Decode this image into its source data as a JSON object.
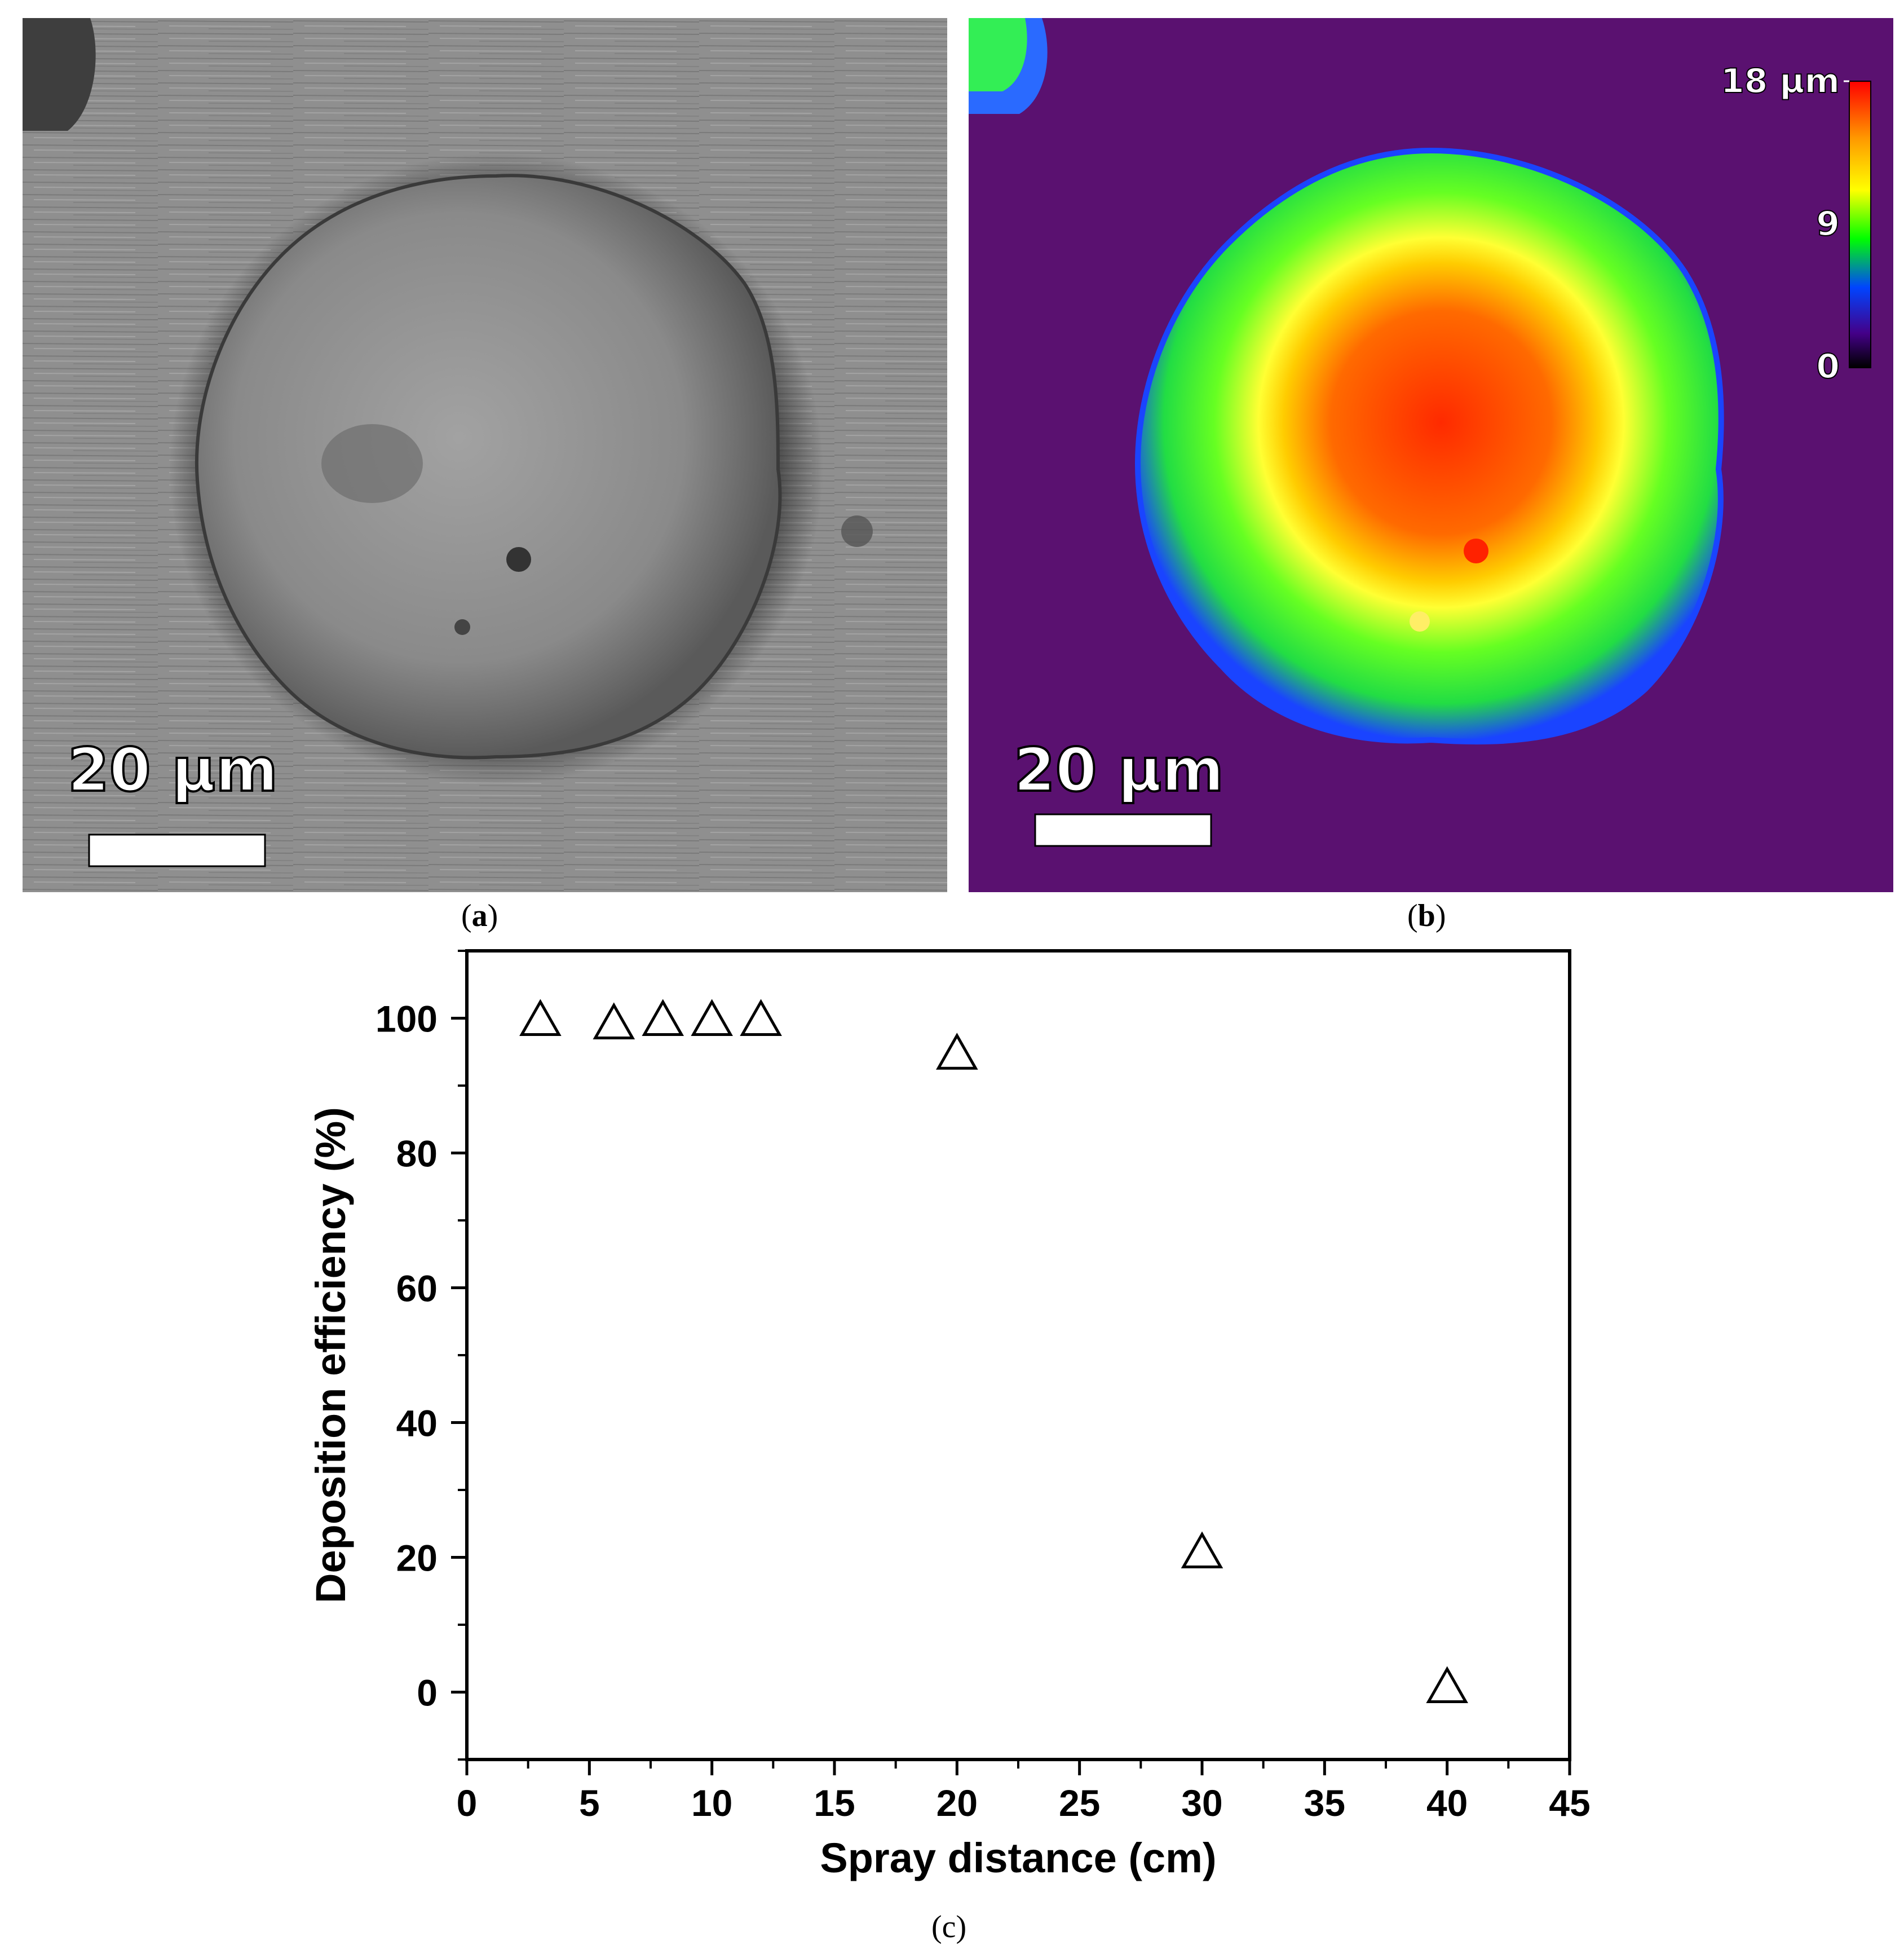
{
  "panel_a": {
    "scalebar_label": "20 µm",
    "caption": "a"
  },
  "panel_b": {
    "scalebar_label": "20 µm",
    "caption": "b",
    "colorbar": {
      "labels": [
        "18 µm",
        "9",
        "0"
      ],
      "colors": [
        "#ff0000",
        "#ff9900",
        "#ffff00",
        "#00ff00",
        "#0044ff",
        "#440088",
        "#000000"
      ]
    }
  },
  "panel_c": {
    "caption": "(c)"
  },
  "chart_data": {
    "type": "scatter",
    "xlabel": "Spray distance (cm)",
    "ylabel": "Deposition efficiency (%)",
    "xlim": [
      0,
      45
    ],
    "ylim": [
      -10,
      110
    ],
    "xticks": [
      0,
      5,
      10,
      15,
      20,
      25,
      30,
      35,
      40,
      45
    ],
    "yticks": [
      0,
      20,
      40,
      60,
      80,
      100
    ],
    "marker": "open-triangle",
    "series": [
      {
        "x": [
          3,
          6,
          8,
          10,
          12,
          20,
          30,
          40
        ],
        "y": [
          100,
          99.5,
          100,
          100,
          100,
          95,
          21,
          1
        ]
      }
    ]
  }
}
